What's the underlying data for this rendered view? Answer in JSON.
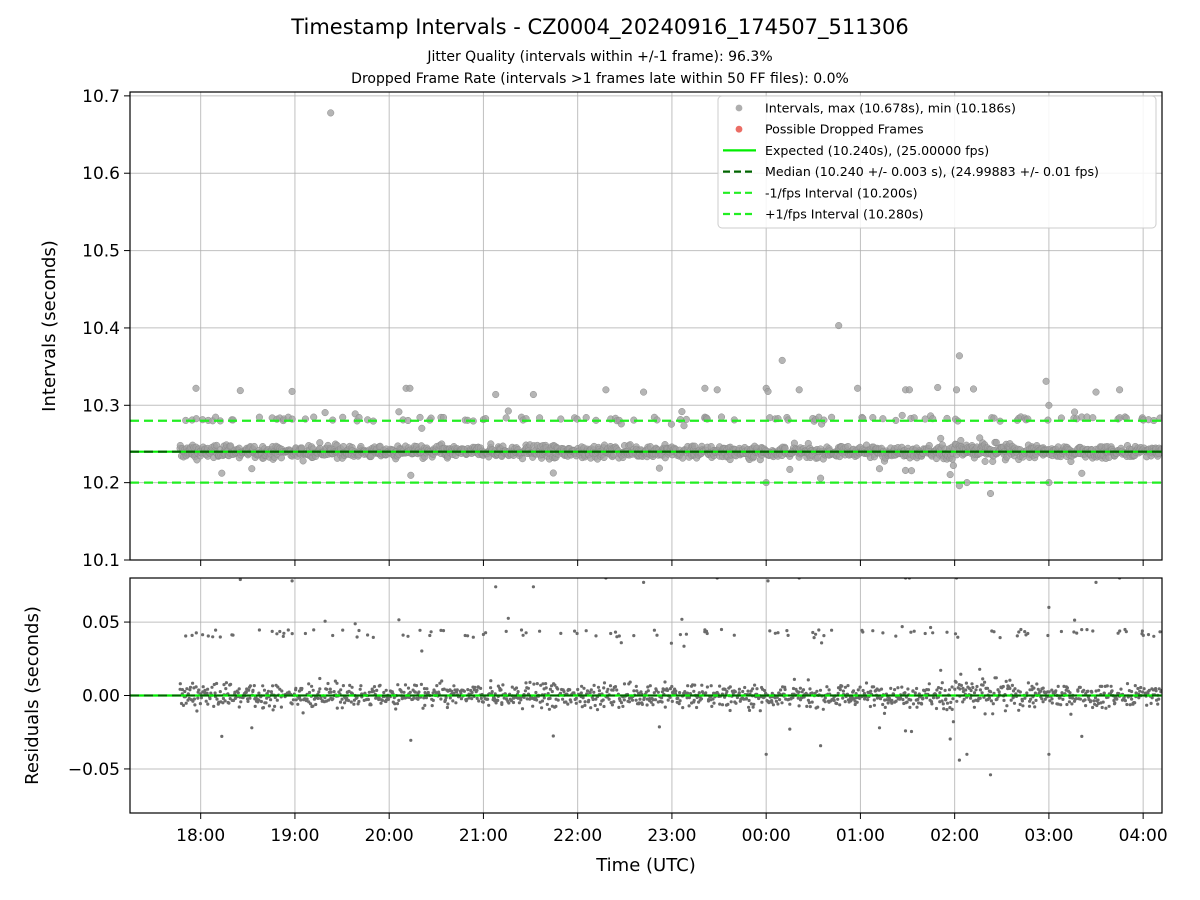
{
  "chart_data": {
    "title": "Timestamp Intervals - CZ0004_20240916_174507_511306",
    "subtitle": [
      "Jitter Quality (intervals within +/-1 frame): 96.3%",
      "Dropped Frame Rate (intervals >1 frames late within 50 FF files): 0.0%"
    ],
    "xlabel": "Time (UTC)",
    "x_range_hours_since_17": [
      0.25,
      11.2
    ],
    "x_ticks": [
      {
        "label": "18:00",
        "hours_since_17": 1
      },
      {
        "label": "19:00",
        "hours_since_17": 2
      },
      {
        "label": "20:00",
        "hours_since_17": 3
      },
      {
        "label": "21:00",
        "hours_since_17": 4
      },
      {
        "label": "22:00",
        "hours_since_17": 5
      },
      {
        "label": "23:00",
        "hours_since_17": 6
      },
      {
        "label": "00:00",
        "hours_since_17": 7
      },
      {
        "label": "01:00",
        "hours_since_17": 8
      },
      {
        "label": "02:00",
        "hours_since_17": 9
      },
      {
        "label": "03:00",
        "hours_since_17": 10
      },
      {
        "label": "04:00",
        "hours_since_17": 11
      }
    ],
    "panels": [
      {
        "type": "scatter",
        "ylabel": "Intervals (seconds)",
        "ylim": [
          10.1,
          10.705
        ],
        "y_ticks": [
          "10.1",
          "10.2",
          "10.3",
          "10.4",
          "10.5",
          "10.6",
          "10.7"
        ],
        "grid": true,
        "legend_position": "top-right",
        "lines": [
          {
            "name": "Expected (10.240s), (25.00000 fps)",
            "y": 10.24,
            "color": "#00ee00",
            "style": "solid"
          },
          {
            "name": "Median (10.240 +/- 0.003 s), (24.99883 +/- 0.01 fps)",
            "y": 10.24,
            "color": "#006400",
            "style": "dashed"
          },
          {
            "name": "-1/fps Interval (10.200s)",
            "y": 10.2,
            "color": "#22ee22",
            "style": "dashed"
          },
          {
            "name": "+1/fps Interval (10.280s)",
            "y": 10.28,
            "color": "#22ee22",
            "style": "dashed"
          }
        ],
        "series": [
          {
            "name": "Intervals, max (10.678s), min (10.186s)",
            "color": "#a0a0a0",
            "max": 10.678,
            "min": 10.186
          },
          {
            "name": "Possible Dropped Frames",
            "color": "#e8534a"
          }
        ],
        "notable_points": [
          {
            "x": 0.95,
            "y": 10.322
          },
          {
            "x": 1.42,
            "y": 10.319
          },
          {
            "x": 1.97,
            "y": 10.318
          },
          {
            "x": 2.38,
            "y": 10.678
          },
          {
            "x": 3.18,
            "y": 10.322
          },
          {
            "x": 3.22,
            "y": 10.322
          },
          {
            "x": 4.13,
            "y": 10.314
          },
          {
            "x": 4.53,
            "y": 10.314
          },
          {
            "x": 5.3,
            "y": 10.32
          },
          {
            "x": 5.7,
            "y": 10.317
          },
          {
            "x": 6.35,
            "y": 10.322
          },
          {
            "x": 6.48,
            "y": 10.32
          },
          {
            "x": 7.0,
            "y": 10.322
          },
          {
            "x": 7.02,
            "y": 10.318
          },
          {
            "x": 7.17,
            "y": 10.358
          },
          {
            "x": 7.35,
            "y": 10.32
          },
          {
            "x": 7.77,
            "y": 10.403
          },
          {
            "x": 7.97,
            "y": 10.322
          },
          {
            "x": 8.48,
            "y": 10.32
          },
          {
            "x": 8.52,
            "y": 10.32
          },
          {
            "x": 8.82,
            "y": 10.323
          },
          {
            "x": 9.02,
            "y": 10.32
          },
          {
            "x": 9.05,
            "y": 10.364
          },
          {
            "x": 9.2,
            "y": 10.321
          },
          {
            "x": 9.97,
            "y": 10.331
          },
          {
            "x": 10.0,
            "y": 10.3
          },
          {
            "x": 10.5,
            "y": 10.317
          },
          {
            "x": 10.75,
            "y": 10.32
          },
          {
            "x": 7.0,
            "y": 10.2
          },
          {
            "x": 9.05,
            "y": 10.196
          },
          {
            "x": 9.13,
            "y": 10.2
          },
          {
            "x": 9.38,
            "y": 10.186
          },
          {
            "x": 10.0,
            "y": 10.2
          }
        ]
      },
      {
        "type": "scatter",
        "ylabel": "Residuals (seconds)",
        "ylim": [
          -0.08,
          0.08
        ],
        "y_ticks": [
          "−0.05",
          "0.00",
          "0.05"
        ],
        "grid": true,
        "lines": [
          {
            "y": 0,
            "color": "#00ee00",
            "style": "solid"
          }
        ],
        "series": [
          {
            "name": "Residuals",
            "color": "#6b6b6b"
          }
        ]
      }
    ]
  }
}
